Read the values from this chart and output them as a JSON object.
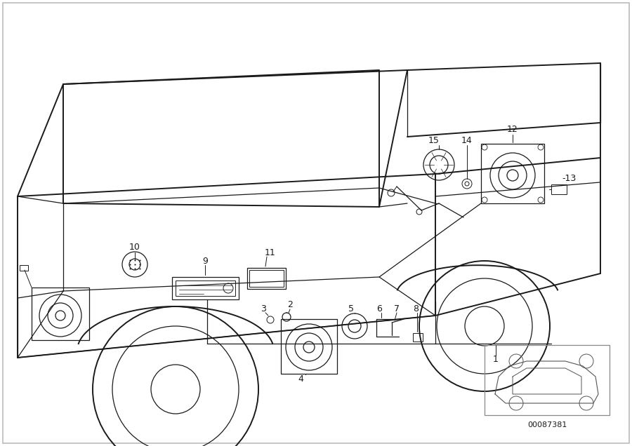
{
  "background_color": "#ffffff",
  "border_color": "#bbbbbb",
  "line_color": "#1a1a1a",
  "fig_width": 9.0,
  "fig_height": 6.36,
  "dpi": 100,
  "part_number": "00087381",
  "gray_light": "#e8e8e8",
  "gray_mid": "#aaaaaa"
}
